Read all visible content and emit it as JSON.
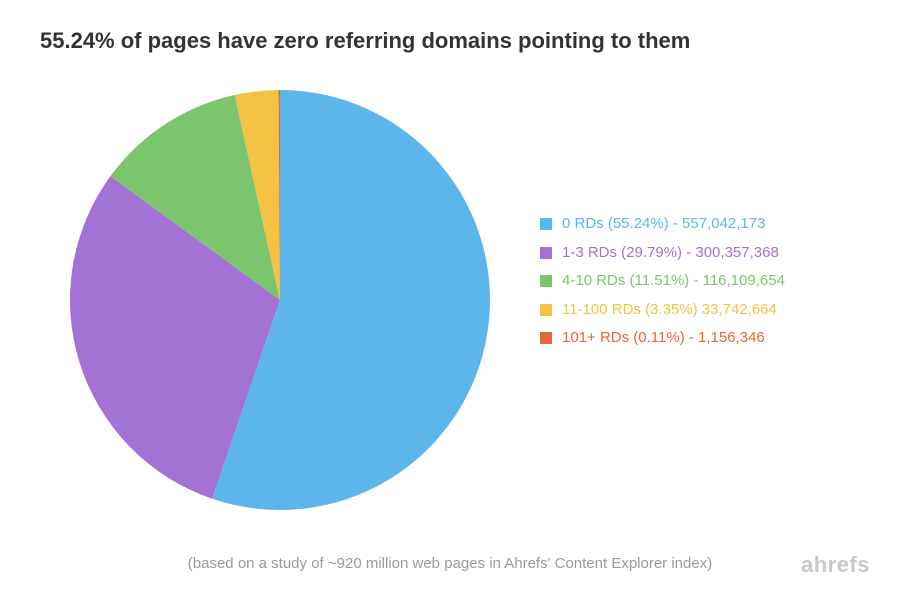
{
  "title": "55.24% of pages have zero referring domains pointing to them",
  "footnote": "(based on a study of ~920 million web pages in Ahrefs' Content Explorer index)",
  "brand": "ahrefs",
  "chart": {
    "type": "pie",
    "diameter": 420,
    "start_angle": -90,
    "background_color": "#ffffff",
    "title_color": "#333333",
    "title_fontsize": 22,
    "title_fontweight": 700,
    "legend_fontsize": 15,
    "footnote_color": "#9a9a9a",
    "footnote_fontsize": 15,
    "brand_color": "#c8c8c8",
    "slices": [
      {
        "label": "0 RDs (55.24%) - 557,042,173",
        "value": 55.24,
        "color": "#5cb6ec"
      },
      {
        "label": "1-3 RDs (29.79%) - 300,357,368",
        "value": 29.79,
        "color": "#a272d4"
      },
      {
        "label": "4-10 RDs (11.51%) - 116,109,654",
        "value": 11.51,
        "color": "#7bc66c"
      },
      {
        "label": "11-100 RDs (3.35%) 33,742,664",
        "value": 3.35,
        "color": "#f4c142"
      },
      {
        "label": "101+ RDs (0.11%) - 1,156,346",
        "value": 0.11,
        "color": "#e8653b"
      }
    ]
  }
}
